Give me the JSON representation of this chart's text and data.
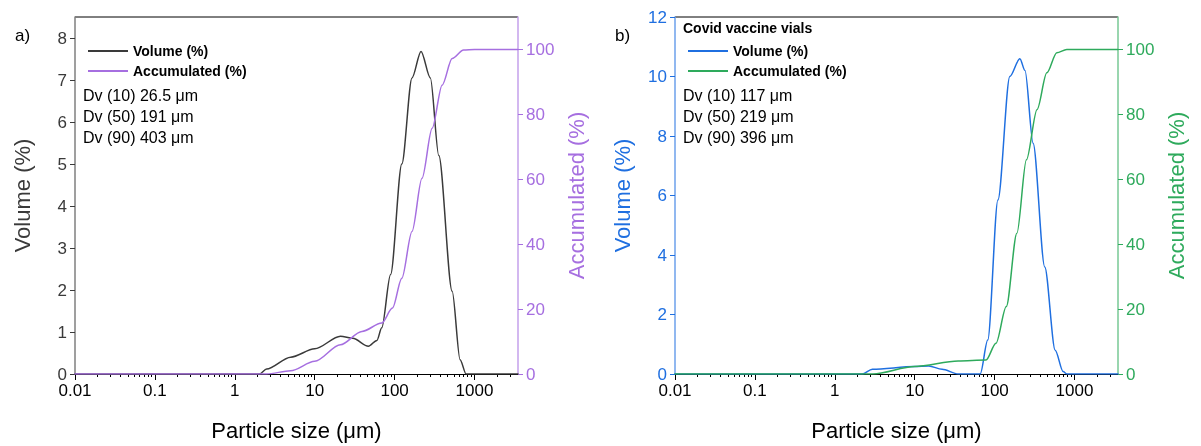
{
  "chart_data": [
    {
      "type": "line",
      "xlabel": "Particle size (μm)",
      "ylabel": "Volume (%)",
      "y2label": "Accumulated (%)",
      "log": "x",
      "grid": false,
      "legend": "top left",
      "marker": "none",
      "xlim": [
        0.01,
        3500
      ],
      "xticks": [
        0.01,
        0.1,
        1,
        10,
        100,
        1000
      ],
      "ylim": [
        0,
        8.5
      ],
      "yticks": [
        0,
        1,
        2,
        3,
        4,
        5,
        6,
        7,
        8
      ],
      "y2lim": [
        0,
        110
      ],
      "y2ticks": [
        0,
        20,
        40,
        60,
        80,
        100
      ],
      "annotations": [
        "a)",
        "Dv (10) 26.5 μm",
        "Dv (50) 191 μm",
        "Dv (90) 403 μm"
      ],
      "series": [
        {
          "name": "Volume (%)",
          "color": "#3a3a3a",
          "x": [
            0.01,
            2.04,
            2.5,
            5,
            10,
            21,
            30,
            47,
            60,
            69,
            89,
            123,
            165,
            214,
            280,
            357,
            525,
            660,
            785,
            3500
          ],
          "values": [
            0,
            0,
            0.12,
            0.4,
            0.6,
            0.9,
            0.85,
            0.66,
            0.8,
            1.1,
            2.37,
            5.0,
            7.05,
            7.68,
            7.05,
            5.2,
            1.97,
            0.34,
            0,
            0
          ]
        },
        {
          "name": "Accumulated (%)",
          "color": "#a66fe0",
          "axis": "y2",
          "x": [
            0.01,
            2.5,
            5,
            10,
            21,
            39,
            69,
            94,
            123,
            165,
            220,
            295,
            393,
            525,
            730,
            1000,
            3500
          ],
          "values": [
            0,
            0,
            1,
            3.9,
            9,
            13.1,
            15.7,
            20.3,
            29.5,
            43.9,
            60.3,
            75.7,
            89,
            97.2,
            99.8,
            100,
            100
          ]
        }
      ]
    },
    {
      "type": "line",
      "xlabel": "Particle size (μm)",
      "ylabel": "Volume (%)",
      "y2label": "Accumulated (%)",
      "legend_title": "Covid vaccine vials",
      "log": "x",
      "grid": false,
      "legend": "top left",
      "marker": "none",
      "xlim": [
        0.01,
        3500
      ],
      "xticks": [
        0.01,
        0.1,
        1,
        10,
        100,
        1000
      ],
      "ylim": [
        0,
        12
      ],
      "yticks": [
        0,
        2,
        4,
        6,
        8,
        10,
        12
      ],
      "y2lim": [
        0,
        110
      ],
      "y2ticks": [
        0,
        20,
        40,
        60,
        80,
        100
      ],
      "annotations": [
        "b)",
        "Dv (10) 117 μm",
        "Dv (50) 219 μm",
        "Dv (90) 396 μm"
      ],
      "series": [
        {
          "name": "Volume (%)",
          "color": "#1f6fe0",
          "x": [
            0.01,
            2.2,
            2.95,
            10,
            15,
            22,
            35,
            66,
            82,
            110,
            155,
            207,
            240,
            303,
            424,
            573,
            720,
            800,
            3500
          ],
          "values": [
            0,
            0,
            0.16,
            0.25,
            0.27,
            0.16,
            0,
            0,
            1.14,
            5.85,
            10.0,
            10.6,
            10.2,
            7.76,
            3.6,
            0.8,
            0.08,
            0,
            0
          ]
        },
        {
          "name": "Accumulated (%)",
          "color": "#2eaa5c",
          "axis": "y2",
          "x": [
            0.01,
            3,
            10,
            35,
            78,
            104,
            140,
            190,
            250,
            340,
            450,
            600,
            800,
            3500
          ],
          "values": [
            0,
            0,
            2.3,
            4.0,
            4.3,
            9.5,
            20.8,
            43.4,
            66,
            81.5,
            92.8,
            99,
            100,
            100
          ]
        }
      ]
    }
  ]
}
